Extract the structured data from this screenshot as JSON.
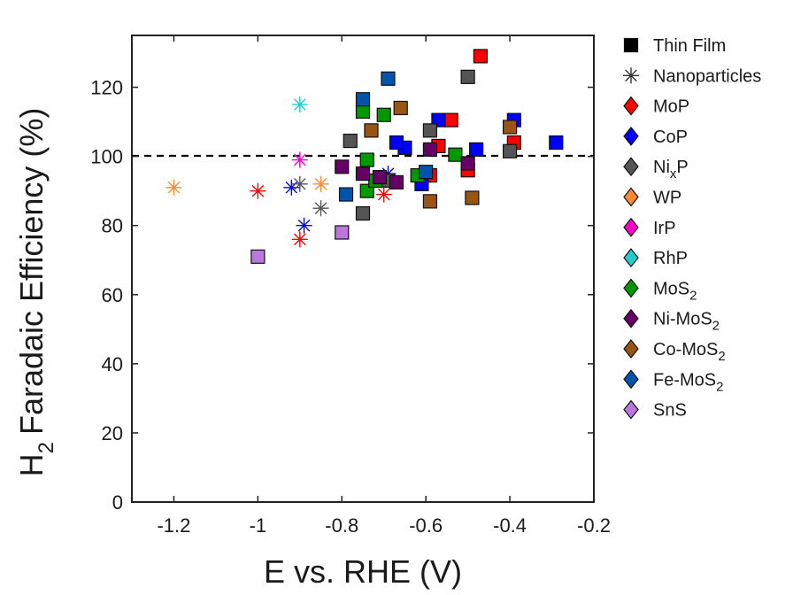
{
  "chart_data": {
    "type": "scatter",
    "xlabel": "E vs. RHE (V)",
    "ylabel": {
      "main": "Faradaic Efficiency (%)",
      "prefix": "H",
      "sub": "2"
    },
    "xlim": [
      -1.3,
      -0.2
    ],
    "ylim": [
      0,
      135
    ],
    "xticks": [
      -1.2,
      -1.0,
      -0.8,
      -0.6,
      -0.4,
      -0.2
    ],
    "xtick_labels": [
      "-1.2",
      "-1",
      "-0.8",
      "-0.6",
      "-0.4",
      "-0.2"
    ],
    "yticks": [
      0,
      20,
      40,
      60,
      80,
      100,
      120
    ],
    "ytick_labels": [
      "0",
      "20",
      "40",
      "60",
      "80",
      "100",
      "120"
    ],
    "reference_line": {
      "y": 100,
      "style": "dashed",
      "color": "#000000"
    },
    "grid": false,
    "legend_position": "right",
    "legend": [
      {
        "label": "Thin Film",
        "marker": "square",
        "color": "#000000"
      },
      {
        "label": "Nanoparticles",
        "marker": "asterisk",
        "color": "#333333"
      },
      {
        "label": "MoP",
        "marker": "diamond",
        "color": "#ff0000"
      },
      {
        "label": "CoP",
        "marker": "diamond",
        "color": "#0000ff"
      },
      {
        "label": "Ni",
        "sub": "x",
        "suffix": "P",
        "marker": "diamond",
        "color": "#555555"
      },
      {
        "label": "WP",
        "marker": "diamond",
        "color": "#ff8833"
      },
      {
        "label": "IrP",
        "marker": "diamond",
        "color": "#ff00cc"
      },
      {
        "label": "RhP",
        "marker": "diamond",
        "color": "#22cccc"
      },
      {
        "label": "MoS",
        "sub": "2",
        "suffix": "",
        "marker": "diamond",
        "color": "#009900"
      },
      {
        "label": "Ni-MoS",
        "sub": "2",
        "suffix": "",
        "marker": "diamond",
        "color": "#660066"
      },
      {
        "label": "Co-MoS",
        "sub": "2",
        "suffix": "",
        "marker": "diamond",
        "color": "#995511"
      },
      {
        "label": "Fe-MoS",
        "sub": "2",
        "suffix": "",
        "marker": "diamond",
        "color": "#0055aa"
      },
      {
        "label": "SnS",
        "marker": "diamond",
        "color": "#bb77dd"
      }
    ],
    "series": [
      {
        "material": "MoP",
        "color": "#ff0000",
        "thin_film": [
          [
            -0.47,
            129
          ],
          [
            -0.54,
            110.5
          ],
          [
            -0.57,
            103
          ],
          [
            -0.59,
            94.5
          ],
          [
            -0.5,
            96
          ],
          [
            -0.39,
            104
          ]
        ],
        "nanoparticles": [
          [
            -1.0,
            90
          ],
          [
            -0.9,
            76
          ],
          [
            -0.7,
            89
          ]
        ]
      },
      {
        "material": "CoP",
        "color": "#0000ff",
        "thin_film": [
          [
            -0.29,
            104
          ],
          [
            -0.39,
            110.5
          ],
          [
            -0.48,
            102
          ],
          [
            -0.57,
            110.5
          ],
          [
            -0.65,
            102.5
          ],
          [
            -0.67,
            104
          ],
          [
            -0.61,
            92
          ]
        ],
        "nanoparticles": [
          [
            -0.92,
            91
          ],
          [
            -0.89,
            80
          ],
          [
            -0.69,
            95
          ]
        ]
      },
      {
        "material": "NixP",
        "color": "#555555",
        "thin_film": [
          [
            -0.5,
            123
          ],
          [
            -0.4,
            101.5
          ],
          [
            -0.59,
            107.5
          ],
          [
            -0.78,
            104.5
          ],
          [
            -0.75,
            83.5
          ],
          [
            -0.69,
            93
          ]
        ],
        "nanoparticles": [
          [
            -0.9,
            92
          ],
          [
            -0.85,
            85
          ]
        ]
      },
      {
        "material": "WP",
        "color": "#ff8833",
        "thin_film": [],
        "nanoparticles": [
          [
            -1.2,
            91
          ],
          [
            -0.85,
            92
          ]
        ]
      },
      {
        "material": "IrP",
        "color": "#ff00cc",
        "thin_film": [],
        "nanoparticles": [
          [
            -0.9,
            99
          ]
        ]
      },
      {
        "material": "RhP",
        "color": "#22cccc",
        "thin_film": [],
        "nanoparticles": [
          [
            -0.9,
            115
          ]
        ]
      },
      {
        "material": "MoS2",
        "color": "#009900",
        "thin_film": [
          [
            -0.75,
            113
          ],
          [
            -0.7,
            112
          ],
          [
            -0.74,
            99
          ],
          [
            -0.74,
            90
          ],
          [
            -0.62,
            94.5
          ],
          [
            -0.53,
            100.5
          ],
          [
            -0.72,
            93
          ]
        ],
        "nanoparticles": []
      },
      {
        "material": "Ni-MoS2",
        "color": "#660066",
        "thin_film": [
          [
            -0.8,
            97
          ],
          [
            -0.75,
            95
          ],
          [
            -0.71,
            94
          ],
          [
            -0.67,
            92.5
          ],
          [
            -0.59,
            102
          ],
          [
            -0.5,
            98
          ]
        ],
        "nanoparticles": []
      },
      {
        "material": "Co-MoS2",
        "color": "#995511",
        "thin_film": [
          [
            -0.66,
            114
          ],
          [
            -0.73,
            107.5
          ],
          [
            -0.4,
            108.5
          ],
          [
            -0.59,
            87
          ],
          [
            -0.49,
            88
          ]
        ],
        "nanoparticles": []
      },
      {
        "material": "Fe-MoS2",
        "color": "#0055aa",
        "thin_film": [
          [
            -0.75,
            116.5
          ],
          [
            -0.69,
            122.5
          ],
          [
            -0.79,
            89
          ],
          [
            -0.6,
            95.5
          ]
        ],
        "nanoparticles": []
      },
      {
        "material": "SnS",
        "color": "#bb77dd",
        "thin_film": [
          [
            -1.0,
            71
          ],
          [
            -0.8,
            78
          ]
        ],
        "nanoparticles": []
      }
    ]
  }
}
